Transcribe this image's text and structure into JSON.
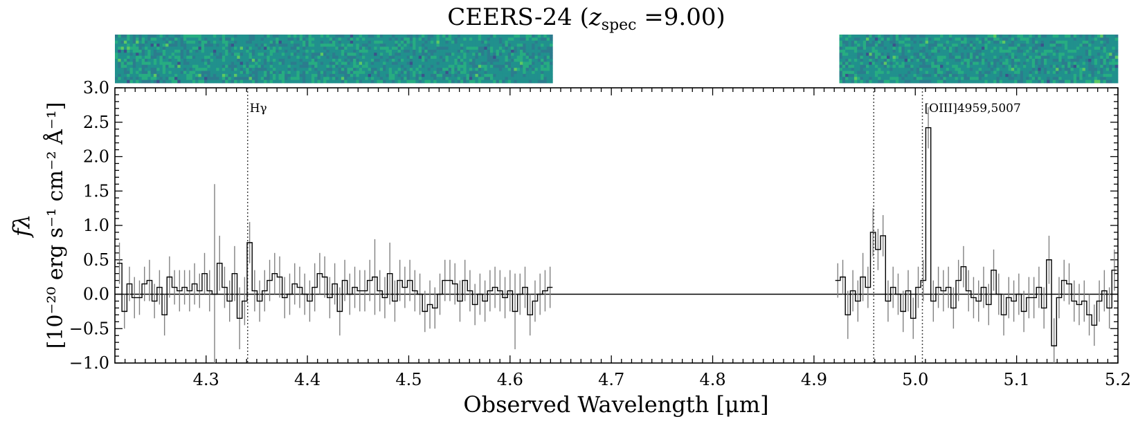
{
  "chart_data": {
    "type": "line",
    "title_main": "CEERS-24 (",
    "title_var": "z",
    "title_sub": "spec",
    "title_val": " =9.00)",
    "xlabel": "Observed Wavelength [μm]",
    "ylabel_line1": "fλ",
    "ylabel_line2": "[10⁻²⁰ erg s⁻¹ cm⁻² Å⁻¹]",
    "xlim": [
      4.21,
      5.2
    ],
    "ylim": [
      -1.0,
      3.0
    ],
    "xticks": [
      "4.3",
      "4.4",
      "4.5",
      "4.6",
      "4.7",
      "4.8",
      "4.9",
      "5.0",
      "5.1",
      "5.2"
    ],
    "yticks": [
      "3.0",
      "2.5",
      "2.0",
      "1.5",
      "1.0",
      "0.5",
      "0.0",
      "−0.5",
      "−1.0"
    ],
    "lines": [
      {
        "label": "Hγ",
        "wavelength": 4.341
      },
      {
        "label": "",
        "wavelength": 4.959
      },
      {
        "label": "[OIII]4959,5007",
        "wavelength": 5.007
      }
    ],
    "segments": [
      {
        "x_start": 4.212,
        "x_end": 4.642,
        "step": 0.0046,
        "flux": [
          0.45,
          -0.25,
          0.15,
          -0.05,
          -0.05,
          0.15,
          0.2,
          -0.1,
          0.1,
          -0.3,
          0.25,
          0.1,
          0.05,
          0.1,
          0.05,
          0.15,
          0.05,
          0.3,
          0.05,
          0.0,
          0.45,
          0.1,
          -0.1,
          0.3,
          -0.35,
          -0.1,
          0.75,
          0.05,
          -0.1,
          0.05,
          0.2,
          0.3,
          0.25,
          -0.05,
          0.0,
          0.15,
          0.1,
          0.0,
          -0.1,
          0.1,
          0.3,
          0.25,
          -0.05,
          0.15,
          -0.25,
          0.2,
          0.0,
          0.1,
          0.05,
          0.05,
          0.2,
          0.25,
          0.05,
          -0.05,
          0.3,
          -0.1,
          0.2,
          0.1,
          0.2,
          0.05,
          0.0,
          -0.25,
          -0.15,
          -0.2,
          0.0,
          0.2,
          0.2,
          0.15,
          -0.1,
          0.2,
          0.05,
          -0.15,
          0.0,
          -0.1,
          0.05,
          0.1,
          0.05,
          -0.05,
          0.05,
          -0.25,
          0.0,
          0.1,
          -0.3,
          -0.1,
          0.0,
          0.05,
          0.1
        ],
        "err": [
          0.3,
          0.25,
          0.25,
          0.3,
          0.25,
          0.25,
          0.3,
          0.25,
          0.25,
          0.3,
          0.3,
          0.25,
          0.3,
          0.25,
          0.3,
          0.3,
          0.25,
          0.3,
          0.3,
          1.6,
          0.4,
          0.3,
          0.3,
          0.4,
          0.45,
          0.35,
          0.3,
          0.3,
          0.3,
          0.3,
          0.3,
          0.3,
          0.3,
          0.3,
          0.3,
          0.3,
          0.3,
          0.3,
          0.3,
          0.35,
          0.3,
          0.3,
          0.3,
          0.3,
          0.35,
          0.3,
          0.3,
          0.3,
          0.3,
          0.3,
          0.3,
          0.55,
          0.3,
          0.3,
          0.45,
          0.3,
          0.3,
          0.3,
          0.3,
          0.3,
          0.3,
          0.3,
          0.35,
          0.3,
          0.3,
          0.3,
          0.3,
          0.3,
          0.3,
          0.3,
          0.3,
          0.3,
          0.3,
          0.3,
          0.3,
          0.3,
          0.3,
          0.3,
          0.3,
          0.55,
          0.3,
          0.3,
          0.3,
          0.3,
          0.3,
          0.3,
          0.3
        ]
      },
      {
        "x_start": 4.921,
        "x_end": 5.199,
        "step": 0.0046,
        "flux": [
          0.2,
          0.25,
          -0.3,
          0.05,
          -0.1,
          0.25,
          0.1,
          0.9,
          0.65,
          0.85,
          -0.1,
          0.1,
          0.0,
          -0.25,
          0.05,
          -0.35,
          0.1,
          0.2,
          2.42,
          -0.1,
          0.1,
          0.05,
          0.1,
          -0.2,
          0.2,
          0.4,
          0.05,
          -0.05,
          -0.1,
          0.1,
          -0.15,
          0.35,
          0.0,
          -0.3,
          -0.05,
          -0.1,
          0.0,
          -0.25,
          -0.05,
          -0.05,
          0.1,
          -0.2,
          0.5,
          -0.75,
          -0.05,
          0.2,
          0.15,
          -0.1,
          -0.15,
          -0.1,
          -0.3,
          -0.45,
          -0.1,
          0.05,
          -0.2,
          0.35
        ],
        "err": [
          0.25,
          0.25,
          0.35,
          0.3,
          0.3,
          0.35,
          0.3,
          0.35,
          0.3,
          0.3,
          0.3,
          0.3,
          0.3,
          0.3,
          0.3,
          0.3,
          0.3,
          0.3,
          0.3,
          0.3,
          0.3,
          0.3,
          0.3,
          0.3,
          0.3,
          0.3,
          0.3,
          0.3,
          0.3,
          0.3,
          0.3,
          0.3,
          0.3,
          0.3,
          0.3,
          0.3,
          0.3,
          0.3,
          0.3,
          0.3,
          0.3,
          0.3,
          0.35,
          0.4,
          0.3,
          0.3,
          0.3,
          0.3,
          0.3,
          0.3,
          0.3,
          0.3,
          0.3,
          0.3,
          0.3,
          0.3
        ]
      }
    ],
    "spectrum2d": {
      "colormap": "viridis",
      "ranges": [
        [
          4.21,
          4.642
        ],
        [
          4.925,
          5.2
        ]
      ]
    },
    "colors": {
      "step": "#000000",
      "errorbar": "#808080",
      "zero_line": "#000000",
      "marker_line": "#444444"
    }
  }
}
